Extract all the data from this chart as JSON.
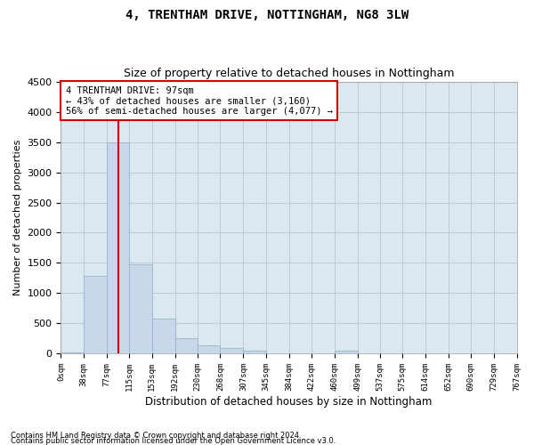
{
  "title": "4, TRENTHAM DRIVE, NOTTINGHAM, NG8 3LW",
  "subtitle": "Size of property relative to detached houses in Nottingham",
  "xlabel": "Distribution of detached houses by size in Nottingham",
  "ylabel": "Number of detached properties",
  "footnote1": "Contains HM Land Registry data © Crown copyright and database right 2024.",
  "footnote2": "Contains public sector information licensed under the Open Government Licence v3.0.",
  "property_size": 97,
  "property_label": "4 TRENTHAM DRIVE: 97sqm",
  "annotation_line1": "← 43% of detached houses are smaller (3,160)",
  "annotation_line2": "56% of semi-detached houses are larger (4,077) →",
  "bar_color": "#c8d8ea",
  "bar_edge_color": "#9ab4cc",
  "vline_color": "#cc0000",
  "annotation_box_color": "#cc0000",
  "plot_bg_color": "#dce8f0",
  "background_color": "#ffffff",
  "grid_color": "#b8ccd8",
  "ylim": [
    0,
    4500
  ],
  "yticks": [
    0,
    500,
    1000,
    1500,
    2000,
    2500,
    3000,
    3500,
    4000,
    4500
  ],
  "bin_edges": [
    0,
    38,
    77,
    115,
    153,
    192,
    230,
    268,
    307,
    345,
    384,
    422,
    460,
    499,
    537,
    575,
    614,
    652,
    690,
    729,
    767
  ],
  "bin_labels": [
    "0sqm",
    "38sqm",
    "77sqm",
    "115sqm",
    "153sqm",
    "192sqm",
    "230sqm",
    "268sqm",
    "307sqm",
    "345sqm",
    "384sqm",
    "422sqm",
    "460sqm",
    "499sqm",
    "537sqm",
    "575sqm",
    "614sqm",
    "652sqm",
    "690sqm",
    "729sqm",
    "767sqm"
  ],
  "bar_heights": [
    20,
    1280,
    3500,
    1470,
    570,
    255,
    135,
    90,
    50,
    0,
    0,
    0,
    50,
    0,
    0,
    0,
    0,
    0,
    0,
    0
  ]
}
